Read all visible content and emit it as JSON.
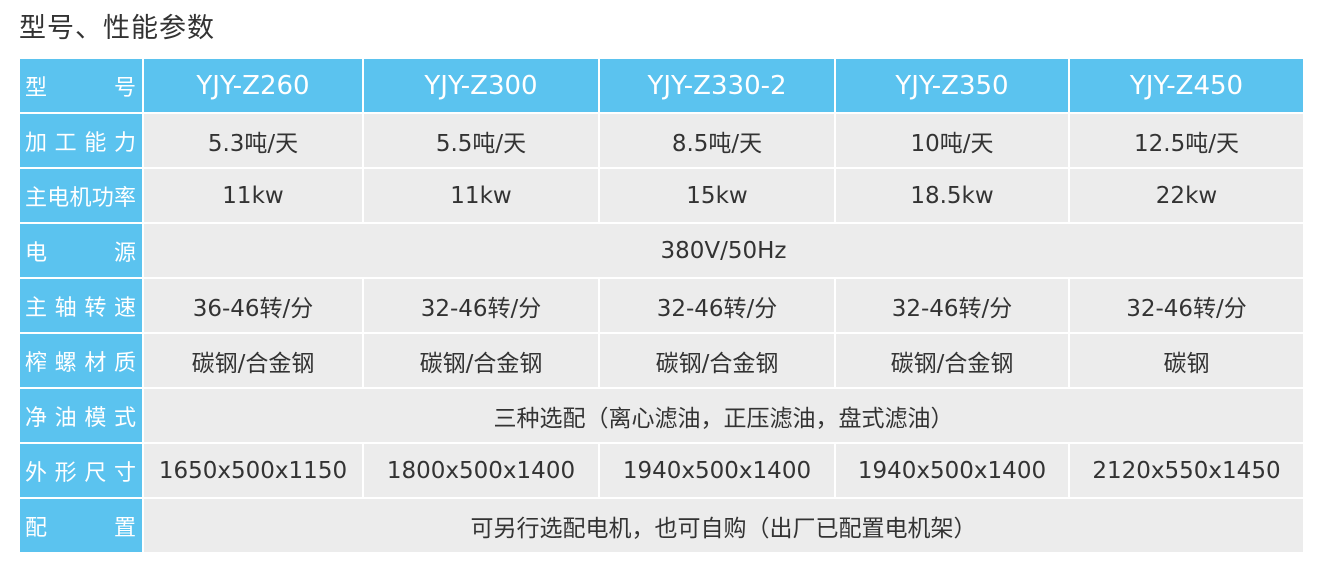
{
  "title": "型号、性能参数",
  "header": {
    "label": "型 号",
    "models": [
      "YJY-Z260",
      "YJY-Z300",
      "YJY-Z330-2",
      "YJY-Z350",
      "YJY-Z450"
    ]
  },
  "rows": [
    {
      "label": "加工能力",
      "values": [
        "5.3吨/天",
        "5.5吨/天",
        "8.5吨/天",
        "10吨/天",
        "12.5吨/天"
      ]
    },
    {
      "label": "主电机功率",
      "values": [
        "11kw",
        "11kw",
        "15kw",
        "18.5kw",
        "22kw"
      ]
    },
    {
      "label": "电 源",
      "span": "380V/50Hz"
    },
    {
      "label": "主轴转速",
      "values": [
        "36-46转/分",
        "32-46转/分",
        "32-46转/分",
        "32-46转/分",
        "32-46转/分"
      ]
    },
    {
      "label": "榨螺材质",
      "values": [
        "碳钢/合金钢",
        "碳钢/合金钢",
        "碳钢/合金钢",
        "碳钢/合金钢",
        "碳钢"
      ]
    },
    {
      "label": "净油模式",
      "span": "三种选配（离心滤油，正压滤油，盘式滤油）"
    },
    {
      "label": "外形尺寸",
      "values": [
        "1650x500x1150",
        "1800x500x1400",
        "1940x500x1400",
        "1940x500x1400",
        "2120x550x1450"
      ]
    },
    {
      "label": "配 置",
      "span": "可另行选配电机，也可自购（出厂已配置电机架）"
    }
  ],
  "colors": {
    "accent": "#5bc3ef",
    "cell": "#ececec"
  }
}
